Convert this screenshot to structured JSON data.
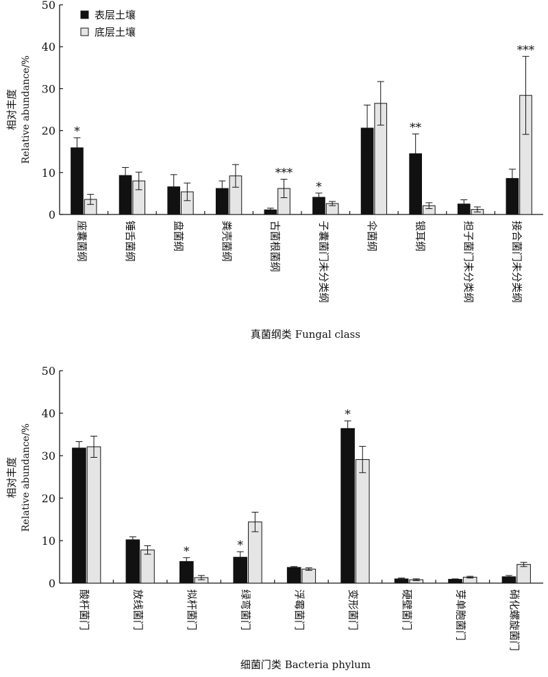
{
  "legend": {
    "surface_label": "表层土壤",
    "subsurface_label": "底层土壤",
    "surface_color": "#111111",
    "subsurface_color": "#e5e5e5"
  },
  "chart_data": [
    {
      "type": "bar",
      "title": "",
      "ylabel_cn": "相对丰度",
      "ylabel_en": "Relative abundance/%",
      "xlabel": "真菌纲类 Fungal class",
      "ylim": [
        0,
        50
      ],
      "yticks": [
        0,
        10,
        20,
        30,
        40,
        50
      ],
      "grid": false,
      "legend_position": "top-left",
      "categories": [
        "座囊菌纲",
        "锤舌菌纲",
        "盘菌纲",
        "粪壳菌纲",
        "古菌根菌纲",
        "子囊菌门未分类纲",
        "伞菌纲",
        "银耳纲",
        "担子菌门未分类纲",
        "接合菌门未分类纲"
      ],
      "series": [
        {
          "name": "表层土壤",
          "values": [
            15.9,
            9.3,
            6.6,
            6.2,
            1.1,
            4.1,
            20.6,
            14.5,
            2.5,
            8.6
          ],
          "errors": [
            2.4,
            1.9,
            2.9,
            1.8,
            0.4,
            1.0,
            5.5,
            4.7,
            1.0,
            2.2
          ]
        },
        {
          "name": "底层土壤",
          "values": [
            3.6,
            8.0,
            5.4,
            9.2,
            6.2,
            2.6,
            26.5,
            2.1,
            1.2,
            28.4
          ],
          "errors": [
            1.2,
            2.1,
            2.1,
            2.7,
            2.2,
            0.5,
            5.2,
            0.7,
            0.6,
            9.3
          ]
        }
      ],
      "annotations": [
        {
          "category": "座囊菌纲",
          "series": 0,
          "text": "*"
        },
        {
          "category": "古菌根菌纲",
          "series": 1,
          "text": "***"
        },
        {
          "category": "子囊菌门未分类纲",
          "series": 0,
          "text": "*"
        },
        {
          "category": "银耳纲",
          "series": 0,
          "text": "**"
        },
        {
          "category": "接合菌门未分类纲",
          "series": 1,
          "text": "***"
        }
      ]
    },
    {
      "type": "bar",
      "title": "",
      "ylabel_cn": "相对丰度",
      "ylabel_en": "Relative abundance/%",
      "xlabel": "细菌门类 Bacteria phylum",
      "ylim": [
        0,
        50
      ],
      "yticks": [
        0,
        10,
        20,
        30,
        40,
        50
      ],
      "grid": false,
      "categories": [
        "酸杆菌门",
        "放线菌门",
        "拟杆菌门",
        "绿弯菌门",
        "浮霉菌门",
        "变形菌门",
        "硬壁菌门",
        "芽单胞菌门",
        "硝化螺旋菌门"
      ],
      "series": [
        {
          "name": "表层土壤",
          "values": [
            31.8,
            10.2,
            5.1,
            6.1,
            3.7,
            36.4,
            1.0,
            0.9,
            1.5
          ],
          "errors": [
            1.5,
            0.7,
            0.9,
            1.3,
            0.2,
            1.8,
            0.2,
            0.1,
            0.3
          ]
        },
        {
          "name": "底层土壤",
          "values": [
            32.1,
            7.8,
            1.3,
            14.4,
            3.3,
            29.1,
            0.8,
            1.4,
            4.4
          ],
          "errors": [
            2.5,
            1.0,
            0.5,
            2.3,
            0.3,
            3.1,
            0.2,
            0.2,
            0.5
          ]
        }
      ],
      "annotations": [
        {
          "category": "拟杆菌门",
          "series": 0,
          "text": "*"
        },
        {
          "category": "绿弯菌门",
          "series": 0,
          "text": "*"
        },
        {
          "category": "变形菌门",
          "series": 0,
          "text": "*"
        }
      ]
    }
  ]
}
